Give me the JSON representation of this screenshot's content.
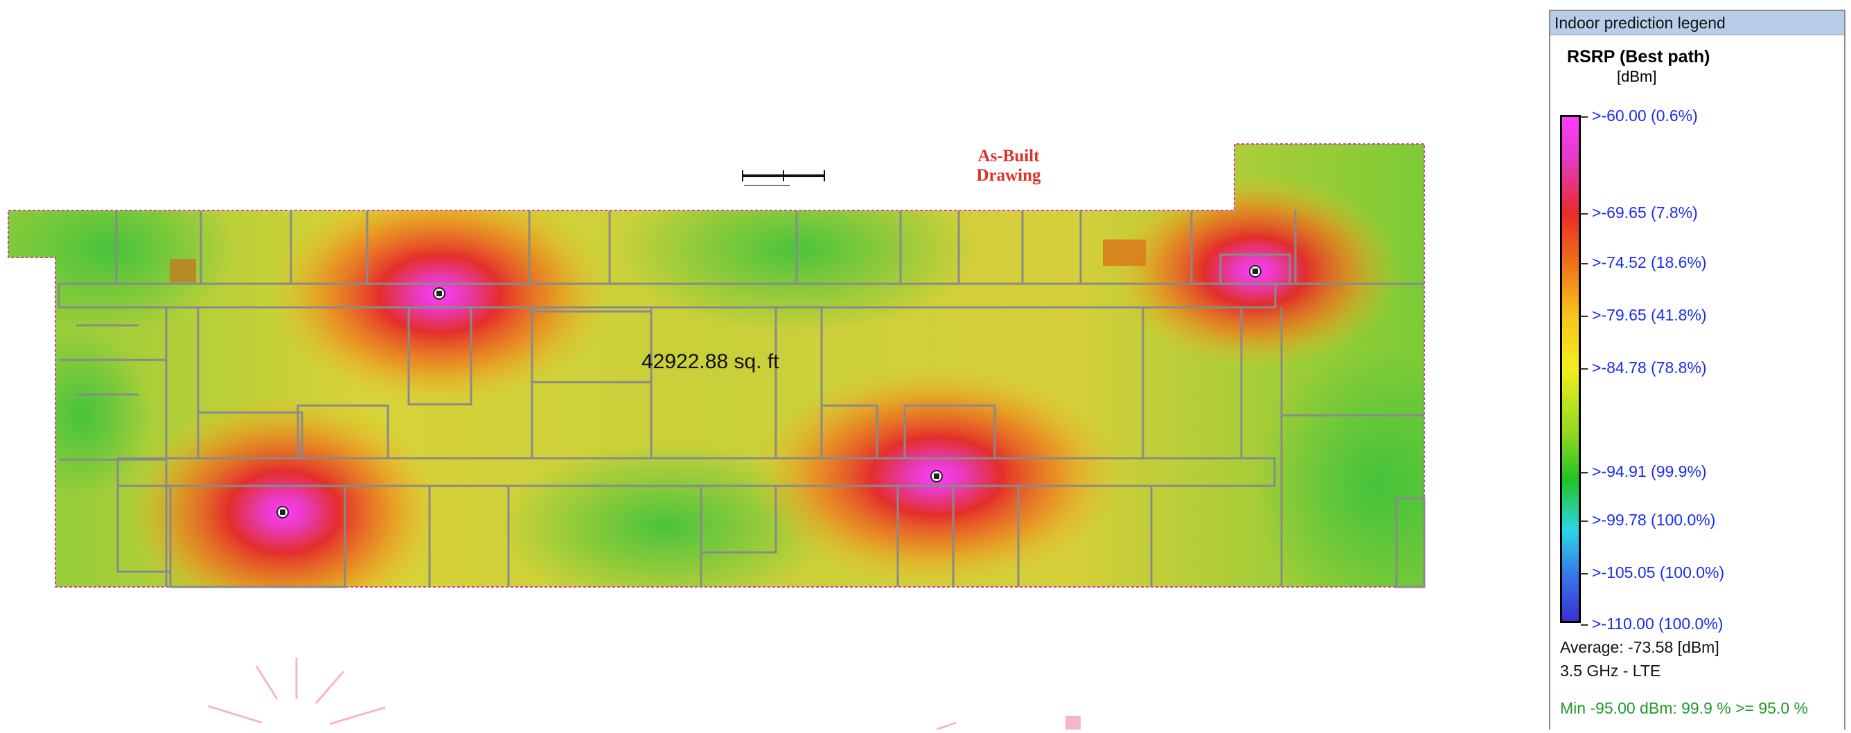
{
  "floor_plan": {
    "drawing_title_line1": "As-Built",
    "drawing_title_line2": "Drawing",
    "area_label": "42922.88 sq. ft",
    "access_points": [
      {
        "name": "access-point-1"
      },
      {
        "name": "access-point-2"
      },
      {
        "name": "access-point-3"
      },
      {
        "name": "access-point-4"
      },
      {
        "name": "access-point-5"
      }
    ]
  },
  "legend": {
    "header": "Indoor prediction legend",
    "metric": "RSRP (Best path)",
    "unit": "[dBm]",
    "colors": {
      "top": "#ff3cff",
      "high": "#ea2a2a",
      "mid": "#f2ee1e",
      "low": "#22c424",
      "lower": "#2cd6e6",
      "bottom": "#3a30d0"
    },
    "levels": [
      {
        "label": ">-60.00 (0.6%)",
        "value": -60.0
      },
      {
        "label": ">-69.65 (7.8%)",
        "value": -69.65
      },
      {
        "label": ">-74.52 (18.6%)",
        "value": -74.52
      },
      {
        "label": ">-79.65 (41.8%)",
        "value": -79.65
      },
      {
        "label": ">-84.78 (78.8%)",
        "value": -84.78
      },
      {
        "label": ">-94.91 (99.9%)",
        "value": -94.91
      },
      {
        "label": ">-99.78 (100.0%)",
        "value": -99.78
      },
      {
        "label": ">-105.05 (100.0%)",
        "value": -105.05
      },
      {
        "label": ">-110.00 (100.0%)",
        "value": -110.0
      }
    ],
    "average": "Average: -73.58 [dBm]",
    "band": "3.5 GHz - LTE",
    "criterion": "Min -95.00 dBm: 99.9 % >= 95.0 %"
  }
}
